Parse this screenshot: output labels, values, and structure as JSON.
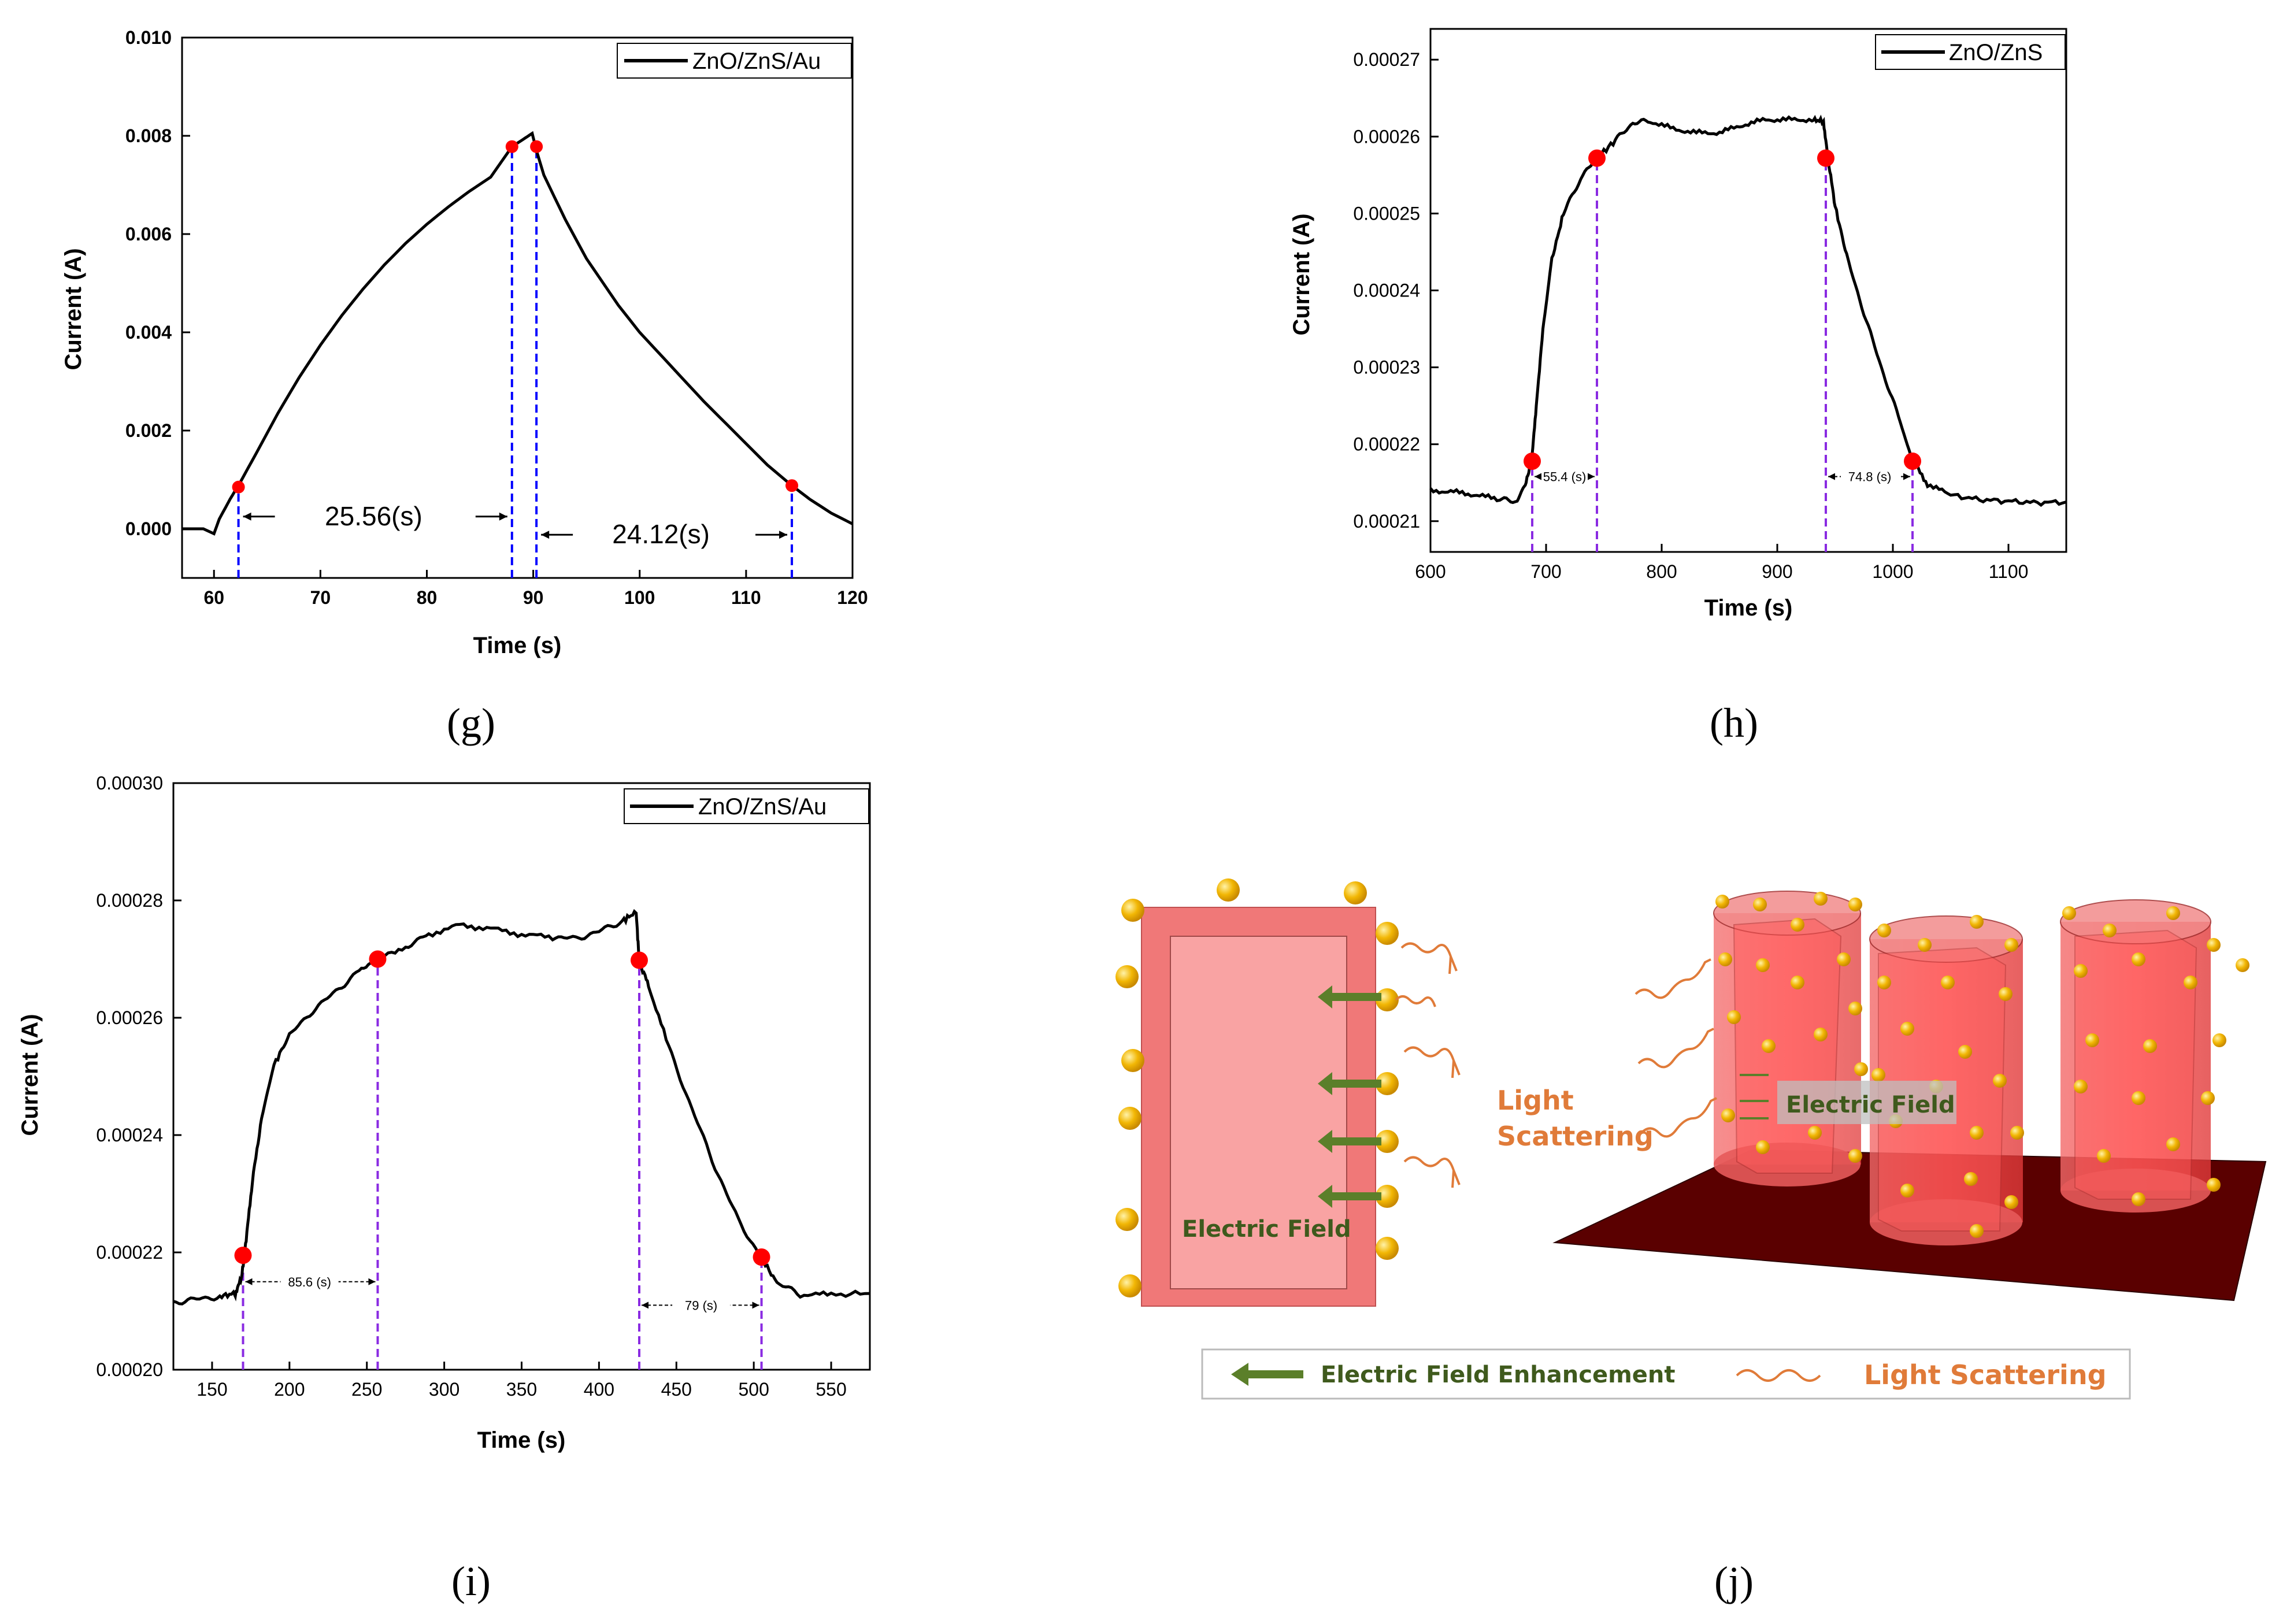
{
  "chart_data": [
    {
      "id": "g",
      "type": "line",
      "panel_label": "(g)",
      "title": "",
      "xlabel": "Time (s)",
      "ylabel": "Current (A)",
      "xlim": [
        57,
        120
      ],
      "ylim": [
        -0.001,
        0.01
      ],
      "xticks": [
        60,
        70,
        80,
        90,
        100,
        110,
        120
      ],
      "xtick_labels": [
        "60",
        "70",
        "80",
        "90",
        "100",
        "110",
        "120"
      ],
      "yticks": [
        0,
        0.002,
        0.004,
        0.006,
        0.008,
        0.01
      ],
      "ytick_labels": [
        "0.000",
        "0.002",
        "0.004",
        "0.006",
        "0.008",
        "0.010"
      ],
      "series": [
        {
          "name": "ZnO/ZnS/Au",
          "x": [
            57,
            58,
            59,
            60,
            60.5,
            61,
            61.5,
            62,
            62.3,
            64,
            66,
            68,
            70,
            72,
            74,
            76,
            78,
            80,
            82,
            84,
            86,
            88,
            89,
            89.9,
            90.3,
            91,
            93,
            95,
            98,
            100,
            103,
            106,
            109,
            112,
            114.3,
            116,
            118,
            120
          ],
          "values": [
            0,
            0,
            0,
            -0.0001,
            0.0002,
            0.0004,
            0.0006,
            0.00078,
            0.00088,
            0.00155,
            0.00235,
            0.00308,
            0.00374,
            0.00434,
            0.00488,
            0.00537,
            0.00581,
            0.0062,
            0.00655,
            0.00687,
            0.00716,
            0.00778,
            0.00792,
            0.00805,
            0.0077,
            0.0072,
            0.0063,
            0.0055,
            0.00455,
            0.004,
            0.0033,
            0.0026,
            0.00195,
            0.0013,
            0.00088,
            0.0006,
            0.00032,
            0.0001
          ]
        }
      ],
      "markers": [
        {
          "x": 62.3,
          "y": 0.00085
        },
        {
          "x": 88,
          "y": 0.00778
        },
        {
          "x": 90.3,
          "y": 0.00778
        },
        {
          "x": 114.3,
          "y": 0.00088
        }
      ],
      "vlines": [
        62.3,
        88,
        90.3,
        114.3
      ],
      "vline_color": "#0000ff",
      "annotations": [
        {
          "text": "25.56(s)",
          "x": 75,
          "y": 0.00025,
          "size": "large"
        },
        {
          "text": "24.12(s)",
          "x": 102,
          "y": -0.00012,
          "size": "large"
        }
      ],
      "legend": {
        "label": "ZnO/ZnS/Au",
        "position": "top-right"
      }
    },
    {
      "id": "h",
      "type": "line",
      "panel_label": "(h)",
      "title": "",
      "xlabel": "Time (s)",
      "ylabel": "Current (A)",
      "xlim": [
        600,
        1150
      ],
      "ylim": [
        0.000206,
        0.000274
      ],
      "xticks": [
        600,
        700,
        800,
        900,
        1000,
        1100
      ],
      "xtick_labels": [
        "600",
        "700",
        "800",
        "900",
        "1000",
        "1100"
      ],
      "yticks": [
        0.00021,
        0.00022,
        0.00023,
        0.00024,
        0.00025,
        0.00026,
        0.00027
      ],
      "ytick_labels": [
        "0.00021",
        "0.00022",
        "0.00023",
        "0.00024",
        "0.00025",
        "0.00026",
        "0.00027"
      ],
      "series": [
        {
          "name": "ZnO/ZnS",
          "x": [
            600,
            620,
            640,
            660,
            675,
            682,
            688,
            692,
            698,
            705,
            715,
            730,
            744,
            760,
            775,
            790,
            810,
            830,
            850,
            870,
            890,
            910,
            930,
            940,
            944,
            950,
            960,
            975,
            990,
            1005,
            1017,
            1030,
            1050,
            1075,
            1100,
            1125,
            1150
          ],
          "values": [
            0.000214,
            0.0002138,
            0.0002134,
            0.0002128,
            0.0002126,
            0.0002145,
            0.0002185,
            0.000226,
            0.000236,
            0.000244,
            0.00025,
            0.0002545,
            0.0002572,
            0.0002595,
            0.0002618,
            0.000262,
            0.000261,
            0.0002605,
            0.0002605,
            0.0002615,
            0.0002622,
            0.0002622,
            0.0002622,
            0.000262,
            0.000257,
            0.000251,
            0.0002445,
            0.000237,
            0.00023,
            0.0002235,
            0.0002178,
            0.0002148,
            0.0002134,
            0.0002128,
            0.0002126,
            0.0002124,
            0.0002125
          ]
        }
      ],
      "markers": [
        {
          "x": 688,
          "y": 0.0002178
        },
        {
          "x": 744,
          "y": 0.0002572
        },
        {
          "x": 942,
          "y": 0.0002572
        },
        {
          "x": 1017,
          "y": 0.0002178
        }
      ],
      "vlines": [
        688,
        744,
        942,
        1017
      ],
      "vline_color": "#8a2be2",
      "annotations": [
        {
          "text": "55.4 (s)",
          "x": 716,
          "y": 0.0002158,
          "size": "small"
        },
        {
          "text": "74.8 (s)",
          "x": 980,
          "y": 0.0002158,
          "size": "small"
        }
      ],
      "legend": {
        "label": "ZnO/ZnS",
        "position": "top-right"
      }
    },
    {
      "id": "i",
      "type": "line",
      "panel_label": "(i)",
      "title": "",
      "xlabel": "Time (s)",
      "ylabel": "Current (A)",
      "xlim": [
        125,
        575
      ],
      "ylim": [
        0.0002,
        0.0003
      ],
      "xticks": [
        150,
        200,
        250,
        300,
        350,
        400,
        450,
        500,
        550
      ],
      "xtick_labels": [
        "150",
        "200",
        "250",
        "300",
        "350",
        "400",
        "450",
        "500",
        "550"
      ],
      "yticks": [
        0.0002,
        0.00022,
        0.00024,
        0.00026,
        0.00028,
        0.0003
      ],
      "ytick_labels": [
        "0.00020",
        "0.00022",
        "0.00024",
        "0.00026",
        "0.00028",
        "0.00030"
      ],
      "series": [
        {
          "name": "ZnO/ZnS/Au",
          "x": [
            125,
            140,
            155,
            165,
            169,
            172,
            176,
            182,
            190,
            200,
            215,
            230,
            245,
            257,
            275,
            290,
            310,
            330,
            350,
            370,
            385,
            400,
            415,
            424,
            426,
            432,
            445,
            460,
            475,
            490,
            505,
            515,
            530,
            550,
            575
          ],
          "values": [
            0.0002115,
            0.000212,
            0.0002125,
            0.000213,
            0.0002155,
            0.000222,
            0.000232,
            0.000243,
            0.000252,
            0.000257,
            0.0002612,
            0.0002645,
            0.000268,
            0.00027,
            0.0002722,
            0.0002742,
            0.0002758,
            0.0002752,
            0.0002742,
            0.0002737,
            0.0002735,
            0.0002747,
            0.0002765,
            0.000278,
            0.0002695,
            0.0002655,
            0.000255,
            0.0002445,
            0.0002345,
            0.0002255,
            0.000219,
            0.0002148,
            0.0002128,
            0.0002128,
            0.000213
          ]
        }
      ],
      "markers": [
        {
          "x": 170,
          "y": 0.0002195
        },
        {
          "x": 257,
          "y": 0.00027
        },
        {
          "x": 426,
          "y": 0.0002698
        },
        {
          "x": 505,
          "y": 0.0002192
        }
      ],
      "vlines": [
        170,
        257,
        426,
        505
      ],
      "vline_color": "#8a2be2",
      "annotations": [
        {
          "text": "85.6 (s)",
          "x": 213,
          "y": 0.000215,
          "size": "small"
        },
        {
          "text": "79 (s)",
          "x": 466,
          "y": 0.000211,
          "size": "small"
        }
      ],
      "legend": {
        "label": "ZnO/ZnS/Au",
        "position": "top-right"
      }
    }
  ],
  "diagram_j": {
    "panel_label": "(j)",
    "labels": {
      "electric_field_left": "Electric Field",
      "light_scattering": "Light\nScattering",
      "light_word1": "Light",
      "light_word2": "Scattering",
      "electric_field_right": "Electric Field"
    },
    "legend": {
      "arrow_label": "Electric Field Enhancement",
      "wave_label": "Light Scattering"
    },
    "colors": {
      "arrow": "#5b7f2a",
      "wave": "#e07b39",
      "gold": "#f2b705",
      "rod": "#ef4444",
      "substrate": "#5a0000"
    }
  }
}
